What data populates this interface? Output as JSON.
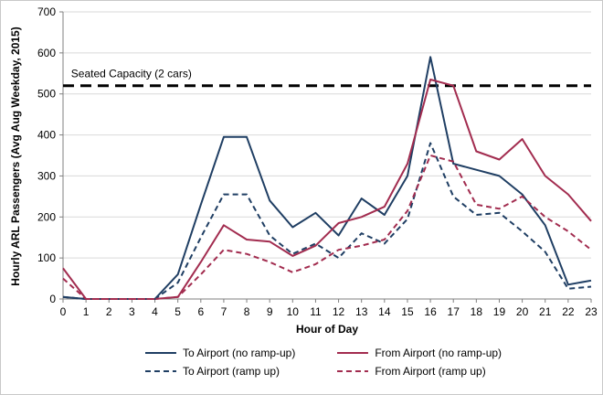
{
  "chart_data": {
    "type": "line",
    "title": "",
    "xlabel": "Hour of Day",
    "ylabel": "Hourly ARL Passengers  (Avg Aug Weekday, 2015)",
    "xlim": [
      0,
      23
    ],
    "ylim": [
      0,
      700
    ],
    "grid": true,
    "legend_position": "bottom",
    "x": [
      0,
      1,
      2,
      3,
      4,
      5,
      6,
      7,
      8,
      9,
      10,
      11,
      12,
      13,
      14,
      15,
      16,
      17,
      18,
      19,
      20,
      21,
      22,
      23
    ],
    "yticks": [
      0,
      100,
      200,
      300,
      400,
      500,
      600,
      700
    ],
    "capacity_line": {
      "label": "Seated Capacity (2 cars)",
      "value": 520,
      "color": "#000000",
      "style": "dashed"
    },
    "series": [
      {
        "name": "To Airport (no ramp-up)",
        "color": "#1F3E63",
        "dash": "solid",
        "values": [
          5,
          0,
          0,
          0,
          0,
          60,
          230,
          395,
          395,
          240,
          175,
          210,
          155,
          245,
          205,
          300,
          590,
          330,
          315,
          300,
          255,
          180,
          35,
          45
        ]
      },
      {
        "name": "From Airport (no ramp-up)",
        "color": "#A22C4F",
        "dash": "solid",
        "values": [
          75,
          0,
          0,
          0,
          0,
          5,
          90,
          180,
          145,
          140,
          105,
          130,
          185,
          200,
          225,
          330,
          535,
          520,
          360,
          340,
          390,
          300,
          255,
          190
        ]
      },
      {
        "name": "To Airport (ramp up)",
        "color": "#1F3E63",
        "dash": "dashed",
        "values": [
          5,
          0,
          0,
          0,
          0,
          40,
          150,
          255,
          255,
          155,
          110,
          135,
          100,
          160,
          135,
          195,
          380,
          250,
          205,
          210,
          165,
          115,
          25,
          30
        ]
      },
      {
        "name": "From Airport (ramp up)",
        "color": "#A22C4F",
        "dash": "dashed",
        "values": [
          50,
          0,
          0,
          0,
          0,
          5,
          60,
          120,
          110,
          90,
          65,
          85,
          120,
          130,
          145,
          215,
          350,
          335,
          230,
          220,
          250,
          200,
          165,
          120
        ]
      }
    ]
  }
}
